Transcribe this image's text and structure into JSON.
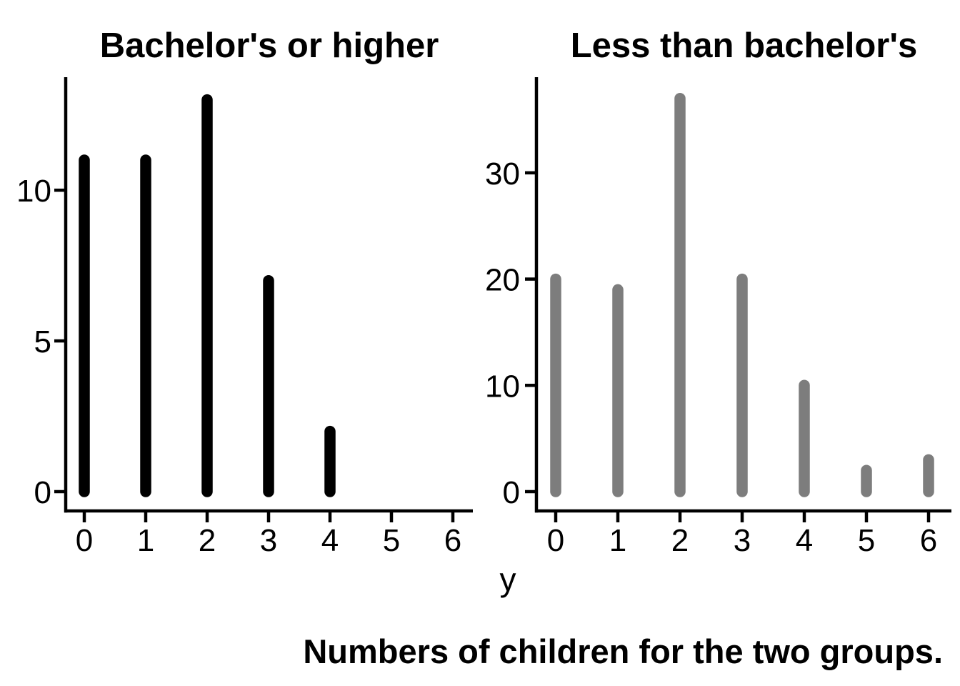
{
  "figure": {
    "background_color": "#ffffff",
    "axis_color": "#000000",
    "text_color": "#000000",
    "shared_x_axis_label": "y",
    "caption": "Numbers of children for the two groups."
  },
  "chart_data": [
    {
      "type": "bar",
      "subtype": "spike-thick-rounded",
      "title": "Bachelor's or higher",
      "x": [
        0,
        1,
        2,
        3,
        4
      ],
      "values": [
        11,
        11,
        13,
        7,
        2
      ],
      "bar_color": "#000000",
      "x_ticks": [
        0,
        1,
        2,
        3,
        4,
        5,
        6
      ],
      "y_ticks": [
        0,
        5,
        10
      ],
      "xlim": [
        -0.35,
        6.35
      ],
      "ylim": [
        0,
        13.75
      ],
      "xlabel": "y",
      "ylabel": "",
      "grid": false,
      "legend": false
    },
    {
      "type": "bar",
      "subtype": "spike-thick-rounded",
      "title": "Less than bachelor's",
      "x": [
        0,
        1,
        2,
        3,
        4,
        5,
        6
      ],
      "values": [
        20,
        19,
        37,
        20,
        10,
        2,
        3
      ],
      "bar_color": "#7d7d7d",
      "x_ticks": [
        0,
        1,
        2,
        3,
        4,
        5,
        6
      ],
      "y_ticks": [
        0,
        10,
        20,
        30
      ],
      "xlim": [
        -0.35,
        6.35
      ],
      "ylim": [
        0,
        39
      ],
      "xlabel": "y",
      "ylabel": "",
      "grid": false,
      "legend": false
    }
  ]
}
